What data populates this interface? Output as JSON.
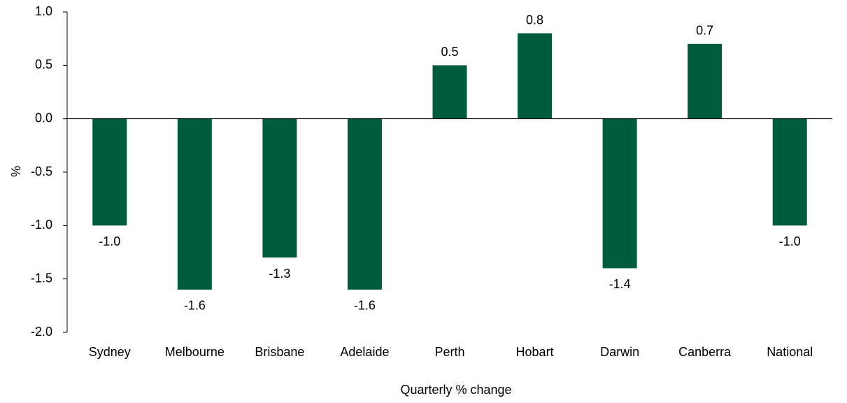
{
  "chart_data": {
    "type": "bar",
    "categories": [
      "Sydney",
      "Melbourne",
      "Brisbane",
      "Adelaide",
      "Perth",
      "Hobart",
      "Darwin",
      "Canberra",
      "National"
    ],
    "values": [
      -1.0,
      -1.6,
      -1.3,
      -1.6,
      0.5,
      0.8,
      -1.4,
      0.7,
      -1.0
    ],
    "value_labels": [
      "-1.0",
      "-1.6",
      "-1.3",
      "-1.6",
      "0.5",
      "0.8",
      "-1.4",
      "0.7",
      "-1.0"
    ],
    "ylim": [
      -2.0,
      1.0
    ],
    "yticks": [
      "1.0",
      "0.5",
      "0.0",
      "-0.5",
      "-1.0",
      "-1.5",
      "-2.0"
    ],
    "ytick_values": [
      1.0,
      0.5,
      0.0,
      -0.5,
      -1.0,
      -1.5,
      -2.0
    ],
    "title": "",
    "xlabel": "Quarterly % change",
    "ylabel": "%",
    "grid": false,
    "legend": "none",
    "bar_color": "#005c3f"
  }
}
